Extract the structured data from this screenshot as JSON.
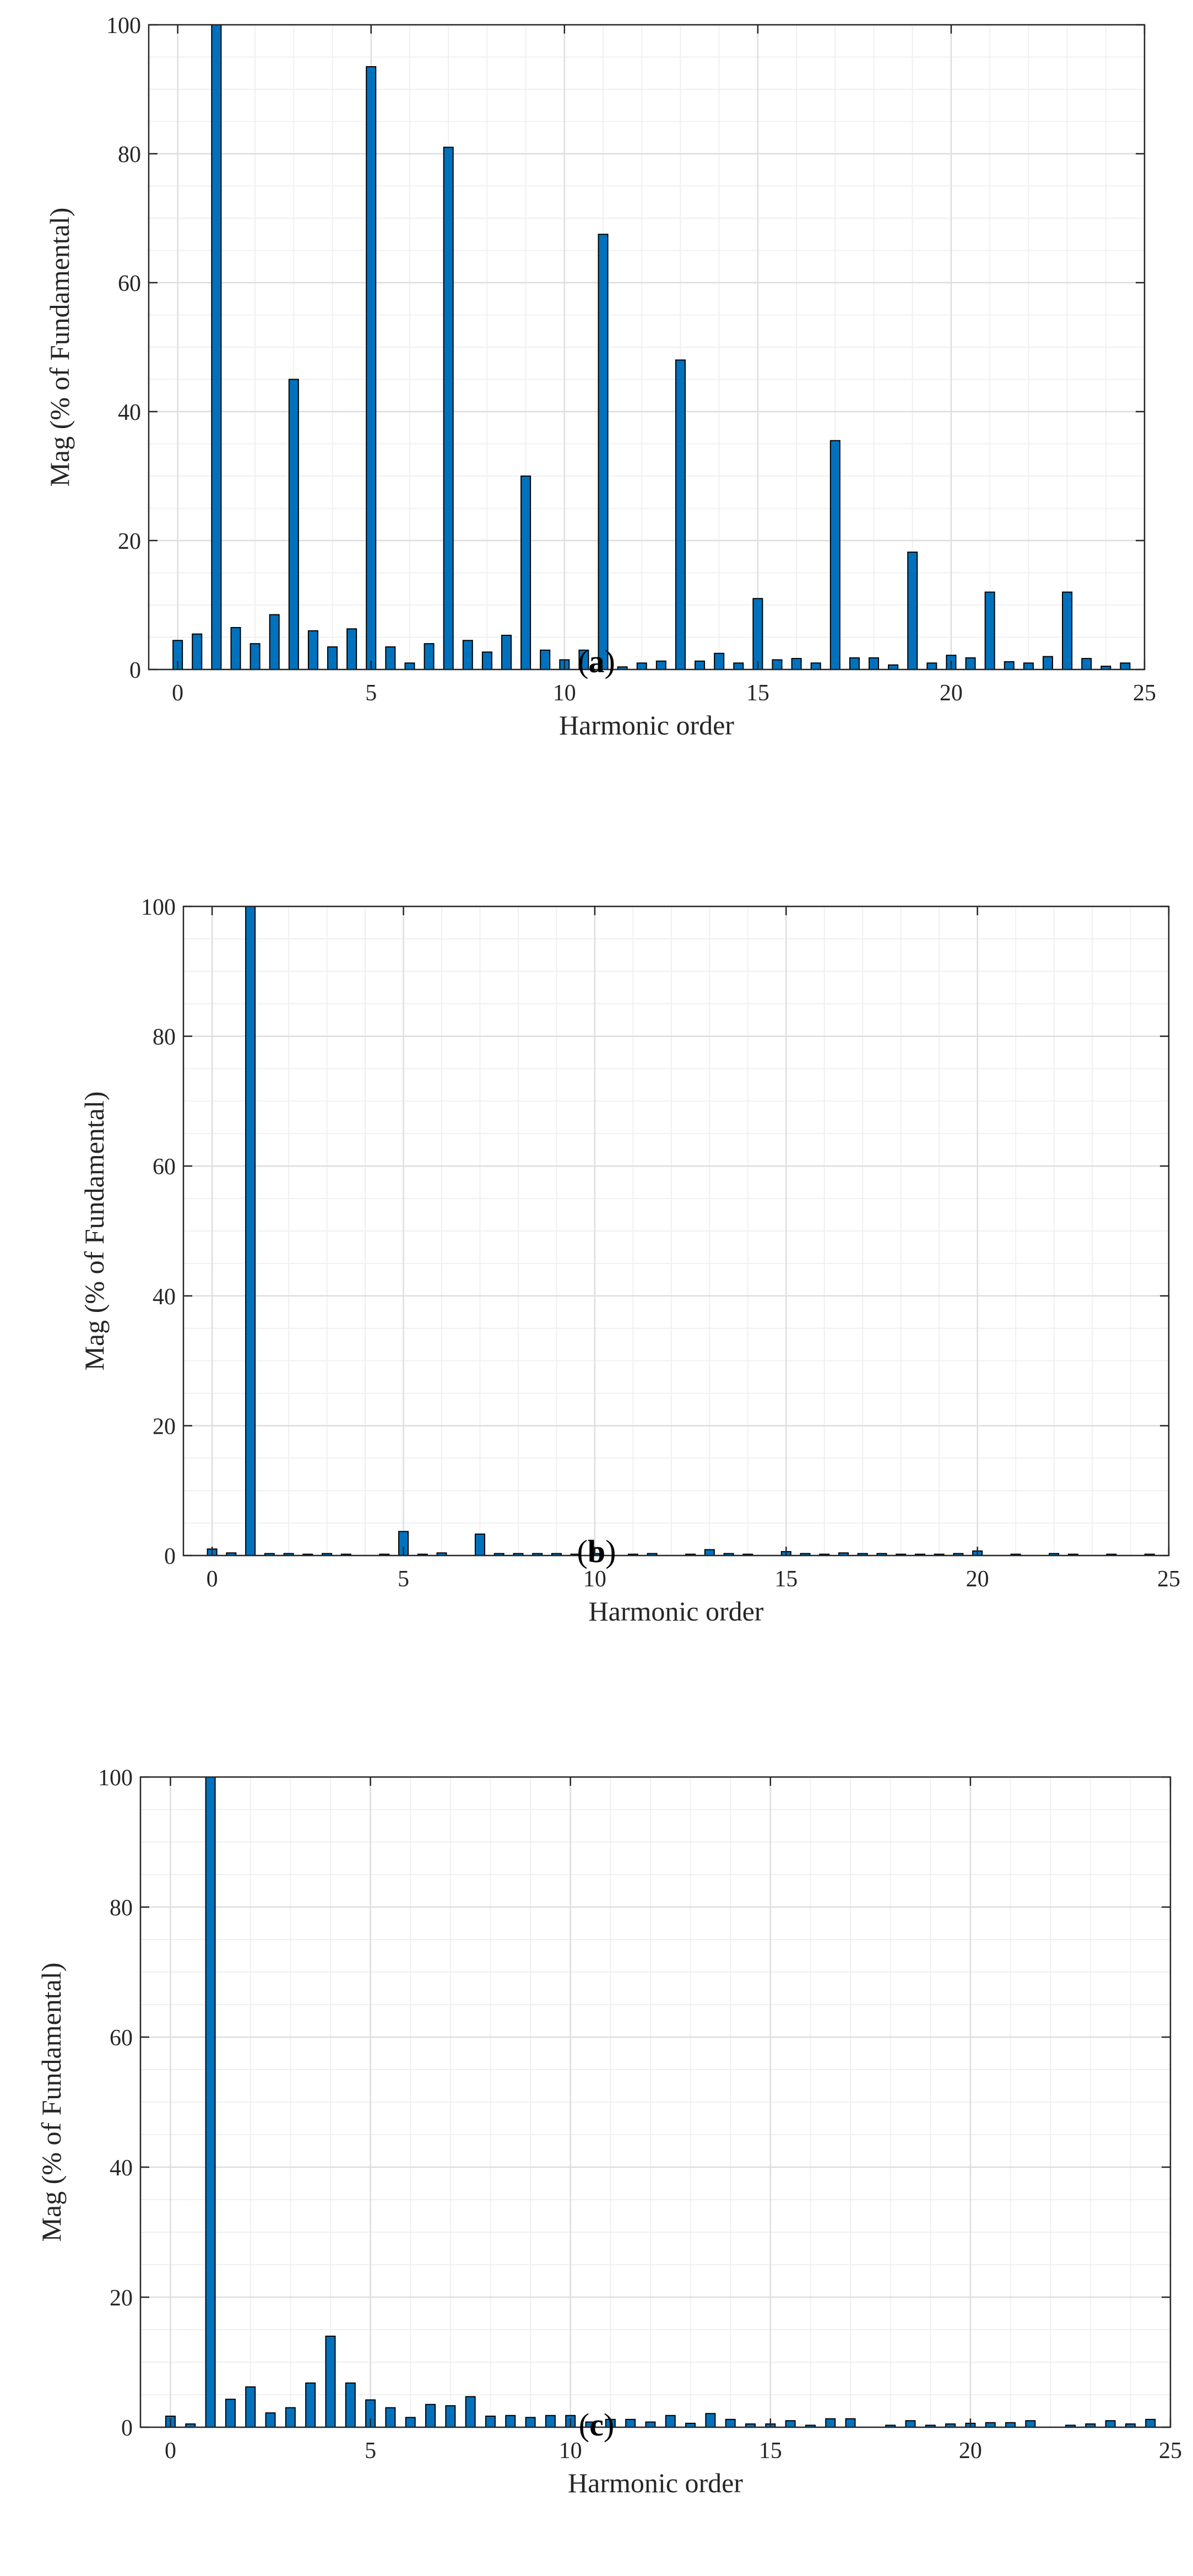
{
  "chart_data": [
    {
      "id": "a",
      "type": "bar",
      "caption": {
        "open": "(",
        "letter": "a",
        "close": ")"
      },
      "xlabel": "Harmonic order",
      "ylabel": "Mag (% of Fundamental)",
      "xlim": [
        -0.75,
        25
      ],
      "ylim": [
        0,
        100
      ],
      "xticks": [
        0,
        5,
        10,
        15,
        20,
        25
      ],
      "yticks": [
        0,
        20,
        40,
        60,
        80,
        100
      ],
      "grid": true,
      "bar_color": "#0072BD",
      "x": [
        0,
        0.5,
        1,
        1.5,
        2,
        2.5,
        3,
        3.5,
        4,
        4.5,
        5,
        5.5,
        6,
        6.5,
        7,
        7.5,
        8,
        8.5,
        9,
        9.5,
        10,
        10.5,
        11,
        11.5,
        12,
        12.5,
        13,
        13.5,
        14,
        14.5,
        15,
        15.5,
        16,
        16.5,
        17,
        17.5,
        18,
        18.5,
        19,
        19.5,
        20,
        20.5,
        21,
        21.5,
        22,
        22.5,
        23,
        23.5,
        24,
        24.5
      ],
      "values": [
        4.5,
        5.5,
        100,
        6.5,
        4,
        8.5,
        45,
        6,
        3.5,
        6.3,
        93.5,
        3.5,
        1,
        4,
        81,
        4.5,
        2.7,
        5.3,
        30,
        3,
        1.5,
        3,
        67.5,
        0.4,
        1,
        1.3,
        48,
        1.3,
        2.5,
        1,
        11,
        1.5,
        1.7,
        1,
        35.5,
        1.8,
        1.8,
        0.7,
        18.2,
        1,
        2.2,
        1.8,
        12,
        1.2,
        1,
        2,
        12,
        1.7,
        0.5,
        1
      ]
    },
    {
      "id": "b",
      "type": "bar",
      "caption": {
        "open": "(",
        "letter": "b",
        "close": ")"
      },
      "xlabel": "Harmonic order",
      "ylabel": "Mag (% of Fundamental)",
      "xlim": [
        -0.75,
        25
      ],
      "ylim": [
        0,
        100
      ],
      "xticks": [
        0,
        5,
        10,
        15,
        20,
        25
      ],
      "yticks": [
        0,
        20,
        40,
        60,
        80,
        100
      ],
      "grid": true,
      "bar_color": "#0072BD",
      "x": [
        0,
        0.5,
        1,
        1.5,
        2,
        2.5,
        3,
        3.5,
        4,
        4.5,
        5,
        5.5,
        6,
        6.5,
        7,
        7.5,
        8,
        8.5,
        9,
        9.5,
        10,
        10.5,
        11,
        11.5,
        12,
        12.5,
        13,
        13.5,
        14,
        14.5,
        15,
        15.5,
        16,
        16.5,
        17,
        17.5,
        18,
        18.5,
        19,
        19.5,
        20,
        20.5,
        21,
        21.5,
        22,
        22.5,
        23,
        23.5,
        24,
        24.5
      ],
      "values": [
        1,
        0.4,
        100,
        0.3,
        0.3,
        0.2,
        0.3,
        0.2,
        0,
        0.2,
        3.7,
        0.2,
        0.4,
        0,
        3.3,
        0.3,
        0.3,
        0.3,
        0.3,
        0.2,
        0.3,
        0,
        0.2,
        0.3,
        0,
        0.2,
        0.9,
        0.3,
        0.2,
        0,
        0.6,
        0.3,
        0.2,
        0.4,
        0.3,
        0.3,
        0.2,
        0.2,
        0.2,
        0.3,
        0.7,
        0,
        0.2,
        0,
        0.3,
        0.2,
        0,
        0.2,
        0,
        0.2
      ]
    },
    {
      "id": "c",
      "type": "bar",
      "caption": {
        "open": "(",
        "letter": "c",
        "close": ")"
      },
      "xlabel": "Harmonic order",
      "ylabel": "Mag (% of Fundamental)",
      "xlim": [
        -0.75,
        25
      ],
      "ylim": [
        0,
        100
      ],
      "xticks": [
        0,
        5,
        10,
        15,
        20,
        25
      ],
      "yticks": [
        0,
        20,
        40,
        60,
        80,
        100
      ],
      "grid": true,
      "bar_color": "#0072BD",
      "x": [
        0,
        0.5,
        1,
        1.5,
        2,
        2.5,
        3,
        3.5,
        4,
        4.5,
        5,
        5.5,
        6,
        6.5,
        7,
        7.5,
        8,
        8.5,
        9,
        9.5,
        10,
        10.5,
        11,
        11.5,
        12,
        12.5,
        13,
        13.5,
        14,
        14.5,
        15,
        15.5,
        16,
        16.5,
        17,
        17.5,
        18,
        18.5,
        19,
        19.5,
        20,
        20.5,
        21,
        21.5,
        22,
        22.5,
        23,
        23.5,
        24,
        24.5
      ],
      "values": [
        1.7,
        0.5,
        100,
        4.3,
        6.2,
        2.2,
        3,
        6.8,
        14,
        6.8,
        4.2,
        3,
        1.5,
        3.5,
        3.3,
        4.7,
        1.7,
        1.8,
        1.5,
        1.8,
        1.8,
        0.8,
        1.2,
        1.2,
        0.8,
        1.8,
        0.6,
        2.1,
        1.2,
        0.5,
        0.5,
        1,
        0.3,
        1.3,
        1.3,
        0,
        0.3,
        1,
        0.3,
        0.5,
        0.6,
        0.7,
        0.7,
        1,
        0,
        0.3,
        0.5,
        1,
        0.5,
        1.2
      ]
    }
  ]
}
